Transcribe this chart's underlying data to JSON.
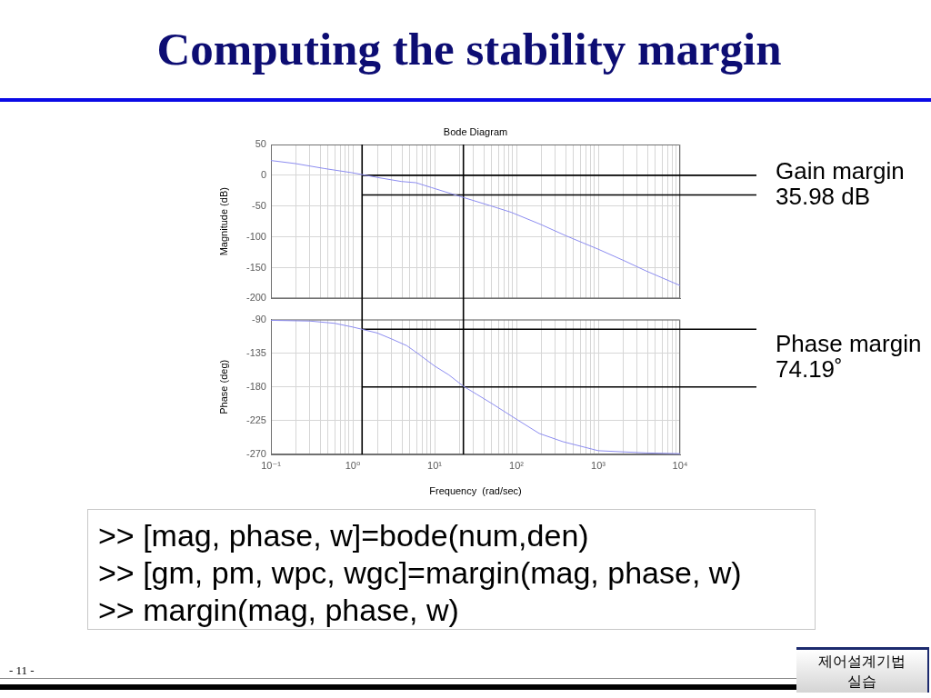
{
  "chart_data": [
    {
      "type": "other",
      "title": "Computing the stability margin"
    },
    {
      "type": "line",
      "title": "Bode Diagram",
      "ylabel": "Magnitude (dB)",
      "log": "x",
      "grid": true,
      "tick_labels": "y",
      "xlim": [
        0.1,
        10000
      ],
      "xticks": [
        {
          "value": 0.1,
          "label": null
        },
        {
          "value": 0.2,
          "label": null
        },
        {
          "value": 0.3,
          "label": null
        },
        {
          "value": 0.4,
          "label": null
        },
        {
          "value": 0.5,
          "label": null
        },
        {
          "value": 0.6,
          "label": null
        },
        {
          "value": 0.7,
          "label": null
        },
        {
          "value": 0.8,
          "label": null
        },
        {
          "value": 0.9,
          "label": null
        },
        {
          "value": 1,
          "label": null
        },
        {
          "value": 2,
          "label": null
        },
        {
          "value": 3,
          "label": null
        },
        {
          "value": 4,
          "label": null
        },
        {
          "value": 5,
          "label": null
        },
        {
          "value": 6,
          "label": null
        },
        {
          "value": 7,
          "label": null
        },
        {
          "value": 8,
          "label": null
        },
        {
          "value": 9,
          "label": null
        },
        {
          "value": 10,
          "label": null
        },
        {
          "value": 20,
          "label": null
        },
        {
          "value": 30,
          "label": null
        },
        {
          "value": 40,
          "label": null
        },
        {
          "value": 50,
          "label": null
        },
        {
          "value": 60,
          "label": null
        },
        {
          "value": 70,
          "label": null
        },
        {
          "value": 80,
          "label": null
        },
        {
          "value": 90,
          "label": null
        },
        {
          "value": 100,
          "label": null
        },
        {
          "value": 200,
          "label": null
        },
        {
          "value": 300,
          "label": null
        },
        {
          "value": 400,
          "label": null
        },
        {
          "value": 500,
          "label": null
        },
        {
          "value": 600,
          "label": null
        },
        {
          "value": 700,
          "label": null
        },
        {
          "value": 800,
          "label": null
        },
        {
          "value": 900,
          "label": null
        },
        {
          "value": 1000,
          "label": null
        },
        {
          "value": 2000,
          "label": null
        },
        {
          "value": 3000,
          "label": null
        },
        {
          "value": 4000,
          "label": null
        },
        {
          "value": 5000,
          "label": null
        },
        {
          "value": 6000,
          "label": null
        },
        {
          "value": 7000,
          "label": null
        },
        {
          "value": 8000,
          "label": null
        },
        {
          "value": 9000,
          "label": null
        },
        {
          "value": 10000,
          "label": null
        }
      ],
      "ylim": [
        -200,
        50
      ],
      "yticks": [
        -200,
        -150,
        -100,
        -50,
        0,
        50
      ],
      "x": [
        0.1,
        0.2,
        0.45,
        1,
        2.1,
        3.9,
        5.9,
        9.2,
        22.5,
        47,
        86,
        200,
        400,
        1000,
        2100,
        3800,
        10000
      ],
      "series": [
        {
          "color": "#8c8cf0",
          "values": [
            24,
            19,
            11,
            4,
            -4,
            -10,
            -12,
            -20,
            -36,
            -49,
            -60,
            -80,
            -98,
            -120,
            -139,
            -155,
            -179
          ]
        }
      ],
      "ref_lines": [
        {
          "axis": "x",
          "value": 1.3,
          "color": "#000000"
        },
        {
          "axis": "x",
          "value": 22.5,
          "color": "#000000"
        },
        {
          "axis": "y",
          "value": 0,
          "color": "#000000"
        },
        {
          "axis": "y",
          "value": -32,
          "color": "#000000"
        }
      ],
      "annotations": [
        "Gain margin",
        "35.98 dB"
      ]
    },
    {
      "type": "line",
      "xlabel": "Frequency  (rad/sec)",
      "ylabel": "Phase (deg)",
      "log": "x",
      "grid": true,
      "xlim": [
        0.1,
        10000
      ],
      "xticks": [
        {
          "value": 0.1,
          "label": "10⁻¹"
        },
        {
          "value": 0.2,
          "label": null
        },
        {
          "value": 0.3,
          "label": null
        },
        {
          "value": 0.4,
          "label": null
        },
        {
          "value": 0.5,
          "label": null
        },
        {
          "value": 0.6,
          "label": null
        },
        {
          "value": 0.7,
          "label": null
        },
        {
          "value": 0.8,
          "label": null
        },
        {
          "value": 0.9,
          "label": null
        },
        {
          "value": 1,
          "label": "10⁰"
        },
        {
          "value": 2,
          "label": null
        },
        {
          "value": 3,
          "label": null
        },
        {
          "value": 4,
          "label": null
        },
        {
          "value": 5,
          "label": null
        },
        {
          "value": 6,
          "label": null
        },
        {
          "value": 7,
          "label": null
        },
        {
          "value": 8,
          "label": null
        },
        {
          "value": 9,
          "label": null
        },
        {
          "value": 10,
          "label": "10¹"
        },
        {
          "value": 20,
          "label": null
        },
        {
          "value": 30,
          "label": null
        },
        {
          "value": 40,
          "label": null
        },
        {
          "value": 50,
          "label": null
        },
        {
          "value": 60,
          "label": null
        },
        {
          "value": 70,
          "label": null
        },
        {
          "value": 80,
          "label": null
        },
        {
          "value": 90,
          "label": null
        },
        {
          "value": 100,
          "label": "10²"
        },
        {
          "value": 200,
          "label": null
        },
        {
          "value": 300,
          "label": null
        },
        {
          "value": 400,
          "label": null
        },
        {
          "value": 500,
          "label": null
        },
        {
          "value": 600,
          "label": null
        },
        {
          "value": 700,
          "label": null
        },
        {
          "value": 800,
          "label": null
        },
        {
          "value": 900,
          "label": null
        },
        {
          "value": 1000,
          "label": "10³"
        },
        {
          "value": 2000,
          "label": null
        },
        {
          "value": 3000,
          "label": null
        },
        {
          "value": 4000,
          "label": null
        },
        {
          "value": 5000,
          "label": null
        },
        {
          "value": 6000,
          "label": null
        },
        {
          "value": 7000,
          "label": null
        },
        {
          "value": 8000,
          "label": null
        },
        {
          "value": 9000,
          "label": null
        },
        {
          "value": 10000,
          "label": "10⁴"
        }
      ],
      "ylim": [
        -270,
        -90
      ],
      "yticks": [
        -270,
        -225,
        -180,
        -135,
        -90
      ],
      "x": [
        0.1,
        0.3,
        0.6,
        1,
        1.3,
        2,
        3,
        4.6,
        6,
        10,
        15,
        22.5,
        33,
        50,
        100,
        190,
        370,
        1000,
        3800,
        10000
      ],
      "series": [
        {
          "color": "#8c8cf0",
          "values": [
            -91,
            -92,
            -95,
            -100,
            -103,
            -108,
            -116,
            -125,
            -134,
            -152,
            -164,
            -179,
            -190,
            -202,
            -223,
            -242,
            -253,
            -265,
            -268,
            -269
          ]
        }
      ],
      "ref_lines": [
        {
          "axis": "x",
          "value": 1.3,
          "color": "#000000"
        },
        {
          "axis": "x",
          "value": 22.5,
          "color": "#000000"
        },
        {
          "axis": "y",
          "value": -103,
          "color": "#000000"
        },
        {
          "axis": "y",
          "value": -180,
          "color": "#000000"
        }
      ],
      "annotations": [
        "Phase margin",
        "74.19˚"
      ]
    },
    {
      "type": "other",
      "annotations": [
        ">> [mag, phase, w]=bode(num,den)",
        ">> [gm, pm, wpc, wgc]=margin(mag, phase, w)",
        ">> margin(mag, phase, w)",
        "- 11 -",
        "제어설계기법 실습"
      ]
    }
  ]
}
